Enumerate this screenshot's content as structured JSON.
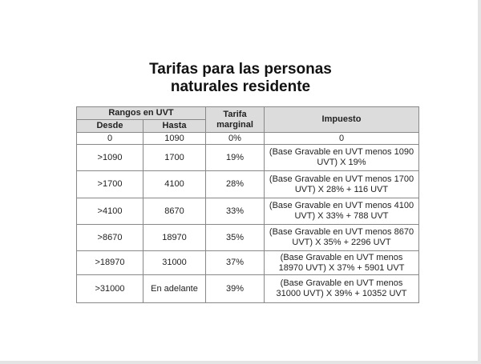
{
  "title": "Tarifas para las personas naturales residente",
  "table": {
    "group_header": "Rangos en UVT",
    "headers": [
      "Desde",
      "Hasta",
      "Tarifa marginal",
      "Impuesto"
    ],
    "rows": [
      [
        "0",
        "1090",
        "0%",
        "0"
      ],
      [
        ">1090",
        "1700",
        "19%",
        "(Base Gravable en UVT menos 1090 UVT) X 19%"
      ],
      [
        ">1700",
        "4100",
        "28%",
        "(Base Gravable en UVT menos 1700 UVT) X 28% + 116 UVT"
      ],
      [
        ">4100",
        "8670",
        "33%",
        "(Base Gravable en UVT menos 4100 UVT) X 33% + 788 UVT"
      ],
      [
        ">8670",
        "18970",
        "35%",
        "(Base Gravable en UVT menos 8670 UVT) X 35% + 2296 UVT"
      ],
      [
        ">18970",
        "31000",
        "37%",
        "(Base Gravable en UVT menos 18970 UVT) X 37% + 5901 UVT"
      ],
      [
        ">31000",
        "En adelante",
        "39%",
        "(Base Gravable en UVT menos 31000 UVT) X 39% + 10352 UVT"
      ]
    ]
  }
}
